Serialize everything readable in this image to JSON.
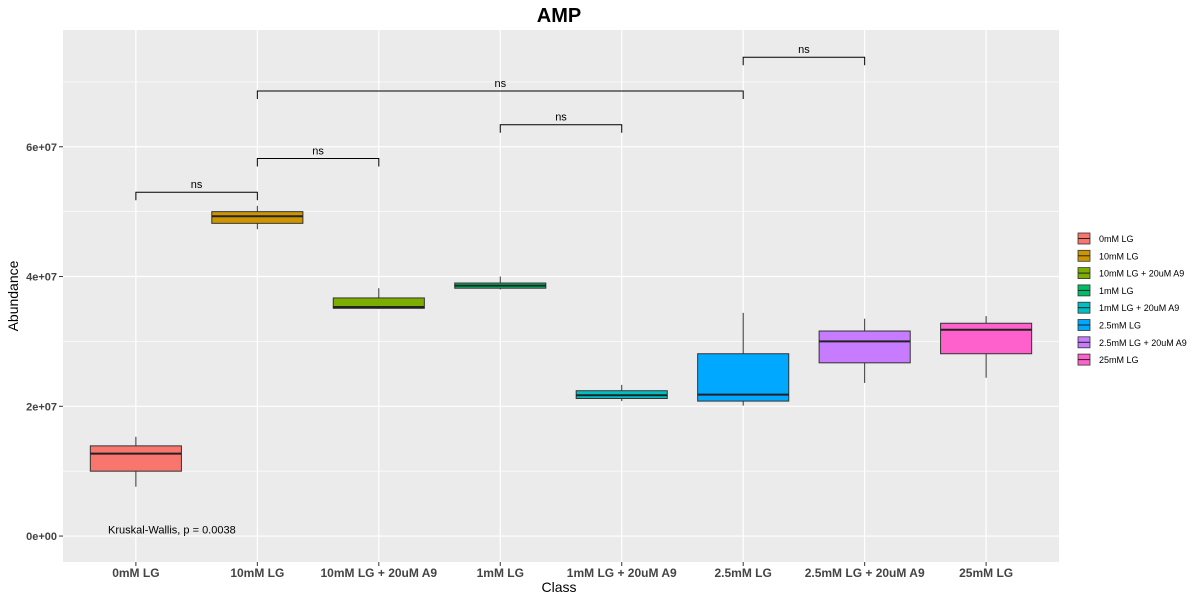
{
  "chart_data": {
    "type": "boxplot",
    "title": "AMP",
    "xlabel": "Class",
    "ylabel": "Abundance",
    "ylim": [
      -4000000,
      78000000
    ],
    "y_ticks": [
      0,
      20000000,
      40000000,
      60000000
    ],
    "y_tick_labels": [
      "0e+00",
      "2e+07",
      "4e+07",
      "6e+07"
    ],
    "categories": [
      "0mM LG",
      "10mM LG",
      "10mM LG + 20uM A9",
      "1mM LG",
      "1mM LG + 20uM A9",
      "2.5mM LG",
      "2.5mM LG + 20uM A9",
      "25mM LG"
    ],
    "boxes": [
      {
        "category": "0mM LG",
        "min": 7600000,
        "q1": 10000000,
        "median": 12700000,
        "q3": 13900000,
        "max": 15300000,
        "color": "#F8766D"
      },
      {
        "category": "10mM LG",
        "min": 47300000,
        "q1": 48200000,
        "median": 49300000,
        "q3": 50000000,
        "max": 50900000,
        "color": "#CD9600"
      },
      {
        "category": "10mM LG + 20uM A9",
        "min": 35000000,
        "q1": 35100000,
        "median": 35300000,
        "q3": 36700000,
        "max": 38200000,
        "color": "#7CAE00"
      },
      {
        "category": "1mM LG",
        "min": 38000000,
        "q1": 38200000,
        "median": 38600000,
        "q3": 39000000,
        "max": 40000000,
        "color": "#00BE67"
      },
      {
        "category": "1mM LG + 20uM A9",
        "min": 20800000,
        "q1": 21200000,
        "median": 21700000,
        "q3": 22400000,
        "max": 23300000,
        "color": "#00BFC4"
      },
      {
        "category": "2.5mM LG",
        "min": 20100000,
        "q1": 20800000,
        "median": 21800000,
        "q3": 28100000,
        "max": 34400000,
        "color": "#00A9FF"
      },
      {
        "category": "2.5mM LG + 20uM A9",
        "min": 23600000,
        "q1": 26700000,
        "median": 30000000,
        "q3": 31600000,
        "max": 33500000,
        "color": "#C77CFF"
      },
      {
        "category": "25mM LG",
        "min": 24400000,
        "q1": 28100000,
        "median": 31800000,
        "q3": 32800000,
        "max": 33900000,
        "color": "#FF61CC"
      }
    ],
    "comparisons": [
      {
        "from": "0mM LG",
        "to": "10mM LG",
        "y": 53000000,
        "label": "ns"
      },
      {
        "from": "10mM LG",
        "to": "10mM LG + 20uM A9",
        "y": 58200000,
        "label": "ns"
      },
      {
        "from": "1mM LG",
        "to": "1mM LG + 20uM A9",
        "y": 63400000,
        "label": "ns"
      },
      {
        "from": "10mM LG",
        "to": "2.5mM LG",
        "y": 68600000,
        "label": "ns"
      },
      {
        "from": "2.5mM LG",
        "to": "2.5mM LG + 20uM A9",
        "y": 73800000,
        "label": "ns"
      }
    ],
    "annotation": {
      "text": "Kruskal-Wallis, p = 0.0038",
      "x_category": "0mM LG",
      "y": 400000
    },
    "legend": {
      "position": "right",
      "entries": [
        "0mM LG",
        "10mM LG",
        "10mM LG + 20uM A9",
        "1mM LG",
        "1mM LG + 20uM A9",
        "2.5mM LG",
        "2.5mM LG + 20uM A9",
        "25mM LG"
      ]
    },
    "grid": true,
    "panel_background": "#EBEBEB",
    "grid_color": "#FFFFFF"
  }
}
